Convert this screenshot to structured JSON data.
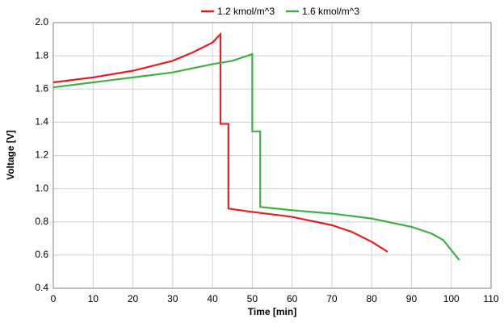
{
  "chart_data": {
    "type": "line",
    "xlabel": "Time [min]",
    "ylabel": "Voltage [V]",
    "xlim": [
      0,
      110
    ],
    "xticks": [
      0,
      10,
      20,
      30,
      40,
      50,
      60,
      70,
      80,
      90,
      100,
      110
    ],
    "ylim": [
      0.4,
      2.0
    ],
    "yticks": [
      0.4,
      0.6,
      0.8,
      {
        "value": 1,
        "label": "1.0"
      },
      1.2,
      1.4,
      1.6,
      1.8,
      {
        "value": 2,
        "label": "2.0"
      }
    ],
    "grid": true,
    "legend": "top",
    "series": [
      {
        "name": "1.2 kmol/m^3",
        "color": "#e02020",
        "x": [
          0,
          10,
          20,
          30,
          35,
          40,
          42,
          42,
          44,
          44,
          50,
          60,
          70,
          75,
          80,
          84
        ],
        "values": [
          1.64,
          1.67,
          1.71,
          1.77,
          1.82,
          1.88,
          1.93,
          1.39,
          1.39,
          0.88,
          0.86,
          0.83,
          0.78,
          0.74,
          0.68,
          0.62
        ]
      },
      {
        "name": "1.6 kmol/m^3",
        "color": "#40b040",
        "x": [
          0,
          10,
          20,
          30,
          40,
          45,
          50,
          50,
          52,
          52,
          60,
          70,
          80,
          90,
          95,
          98,
          100,
          102
        ],
        "values": [
          1.61,
          1.64,
          1.67,
          1.7,
          1.75,
          1.77,
          1.81,
          1.345,
          1.345,
          0.89,
          0.87,
          0.85,
          0.82,
          0.77,
          0.73,
          0.69,
          0.63,
          0.57
        ]
      }
    ]
  }
}
